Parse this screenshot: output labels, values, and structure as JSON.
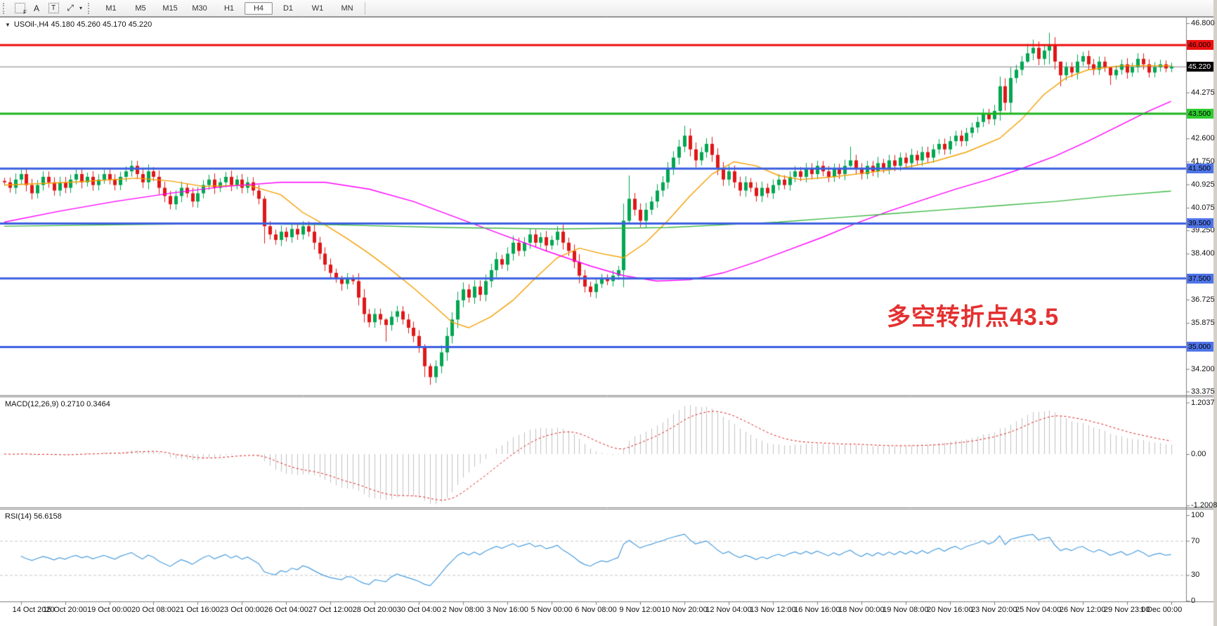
{
  "toolbar": {
    "icons": [
      {
        "name": "object-list-icon",
        "glyph": "F"
      },
      {
        "name": "text-label-icon",
        "glyph": "A"
      },
      {
        "name": "text-box-icon",
        "glyph": "T"
      },
      {
        "name": "cursor-mode-icon",
        "glyph": "⤢"
      }
    ],
    "dropdown_caret": "▾",
    "timeframes": [
      "M1",
      "M5",
      "M15",
      "M30",
      "H1",
      "H4",
      "D1",
      "W1",
      "MN"
    ],
    "active_timeframe": "H4"
  },
  "chart": {
    "title_text": "USOil-,H4  45.180 45.260 45.170 45.220",
    "annotation": {
      "text": "多空转折点43.5",
      "color": "#e43030"
    }
  },
  "indicators": {
    "macd": {
      "label_full": "MACD(12,26,9) 0.2710 0.3464",
      "params": "12,26,9",
      "main_value": "0.2710",
      "signal_value": "0.3464",
      "axis_labels": [
        {
          "text": "1.2037",
          "value": 1.2037
        },
        {
          "text": "0.00",
          "value": 0
        },
        {
          "text": "-1.2008",
          "value": -1.2008
        }
      ]
    },
    "rsi": {
      "label_full": "RSI(14) 56.6158",
      "period": "14",
      "value": "56.6158",
      "axis_labels": [
        {
          "text": "100",
          "value": 100
        },
        {
          "text": "70",
          "value": 70
        },
        {
          "text": "30",
          "value": 30
        },
        {
          "text": "0",
          "value": 0
        }
      ],
      "dashed_levels": [
        70,
        30
      ]
    }
  },
  "price_axis": {
    "ticks": [
      {
        "text": "46.800",
        "price": 46.8
      },
      {
        "text": "44.275",
        "price": 44.275
      },
      {
        "text": "42.600",
        "price": 42.6
      },
      {
        "text": "41.750",
        "price": 41.75
      },
      {
        "text": "40.925",
        "price": 40.925
      },
      {
        "text": "40.075",
        "price": 40.075
      },
      {
        "text": "39.250",
        "price": 39.25
      },
      {
        "text": "38.400",
        "price": 38.4
      },
      {
        "text": "36.725",
        "price": 36.725
      },
      {
        "text": "35.875",
        "price": 35.875
      },
      {
        "text": "34.200",
        "price": 34.2
      },
      {
        "text": "33.375",
        "price": 33.375
      }
    ],
    "badges": [
      {
        "text": "46.000",
        "price": 46.0,
        "bg": "#ee1111",
        "fg": "#000000"
      },
      {
        "text": "45.220",
        "price": 45.22,
        "bg": "#000000",
        "fg": "#ffffff"
      },
      {
        "text": "43.500",
        "price": 43.5,
        "bg": "#2fcc2f",
        "fg": "#000000"
      },
      {
        "text": "41.500",
        "price": 41.5,
        "bg": "#4f74e8",
        "fg": "#000000"
      },
      {
        "text": "39.500",
        "price": 39.5,
        "bg": "#4f74e8",
        "fg": "#000000"
      },
      {
        "text": "37.500",
        "price": 37.5,
        "bg": "#4f74e8",
        "fg": "#000000"
      },
      {
        "text": "35.000",
        "price": 35.0,
        "bg": "#4f74e8",
        "fg": "#000000"
      }
    ]
  },
  "time_axis": {
    "labels": [
      "14 Oct 2020",
      "15 Oct 20:00",
      "19 Oct 00:00",
      "20 Oct 08:00",
      "21 Oct 16:00",
      "23 Oct 00:00",
      "26 Oct 04:00",
      "27 Oct 12:00",
      "28 Oct 20:00",
      "30 Oct 04:00",
      "2 Nov 08:00",
      "3 Nov 16:00",
      "5 Nov 00:00",
      "6 Nov 08:00",
      "9 Nov 12:00",
      "10 Nov 20:00",
      "12 Nov 04:00",
      "13 Nov 12:00",
      "16 Nov 16:00",
      "18 Nov 00:00",
      "19 Nov 08:00",
      "20 Nov 16:00",
      "23 Nov 20:00",
      "25 Nov 04:00",
      "26 Nov 12:00",
      "29 Nov 23:00",
      "1 Dec 00:00"
    ]
  },
  "chart_data": {
    "type": "candlestick",
    "symbol": "USOil-",
    "timeframe": "H4",
    "current_bar": {
      "open": 45.18,
      "high": 45.26,
      "low": 45.17,
      "close": 45.22
    },
    "price_range": [
      33.375,
      46.8
    ],
    "open_rule": "previous_close",
    "closes": [
      41.0,
      40.8,
      41.1,
      41.3,
      40.9,
      40.6,
      40.9,
      41.2,
      41.0,
      40.7,
      41.0,
      40.8,
      41.1,
      41.3,
      41.0,
      41.2,
      40.9,
      41.1,
      41.3,
      41.1,
      40.9,
      41.2,
      41.4,
      41.6,
      41.3,
      41.0,
      41.4,
      41.2,
      40.8,
      40.5,
      40.2,
      40.5,
      40.8,
      40.6,
      40.3,
      40.6,
      40.9,
      41.1,
      40.8,
      41.0,
      41.2,
      40.9,
      41.1,
      40.8,
      41.0,
      40.7,
      40.4,
      39.4,
      39.1,
      38.9,
      39.2,
      39.0,
      39.3,
      39.1,
      39.4,
      39.2,
      38.8,
      38.4,
      38.0,
      37.7,
      37.5,
      37.3,
      37.5,
      37.4,
      36.8,
      36.2,
      35.9,
      36.2,
      36.0,
      35.8,
      36.1,
      36.3,
      36.0,
      35.7,
      35.4,
      35.0,
      34.3,
      33.9,
      34.3,
      34.8,
      35.4,
      36.0,
      36.7,
      37.1,
      36.8,
      37.2,
      36.9,
      37.4,
      37.8,
      38.2,
      38.0,
      38.4,
      38.8,
      38.5,
      38.8,
      39.1,
      38.8,
      39.0,
      38.7,
      38.9,
      39.2,
      38.8,
      38.5,
      38.1,
      37.6,
      37.2,
      37.0,
      37.3,
      37.5,
      37.4,
      37.6,
      37.8,
      39.6,
      40.4,
      40.0,
      39.6,
      40.0,
      40.3,
      40.7,
      41.0,
      41.5,
      41.9,
      42.3,
      42.7,
      42.2,
      41.8,
      42.1,
      42.4,
      42.0,
      41.5,
      41.1,
      41.4,
      41.0,
      40.7,
      41.0,
      40.8,
      40.5,
      40.8,
      40.6,
      40.9,
      41.1,
      40.9,
      41.2,
      41.4,
      41.2,
      41.5,
      41.3,
      41.6,
      41.4,
      41.2,
      41.5,
      41.3,
      41.6,
      41.8,
      41.5,
      41.3,
      41.6,
      41.4,
      41.7,
      41.5,
      41.8,
      41.6,
      41.9,
      41.7,
      42.0,
      41.8,
      42.1,
      41.9,
      42.2,
      42.4,
      42.2,
      42.5,
      42.7,
      42.5,
      42.8,
      43.0,
      43.2,
      43.5,
      43.3,
      43.6,
      44.5,
      43.9,
      44.8,
      45.1,
      45.4,
      45.7,
      45.9,
      45.5,
      45.8,
      46.0,
      45.4,
      44.9,
      45.2,
      45.0,
      45.4,
      45.6,
      45.3,
      45.1,
      45.4,
      45.2,
      44.9,
      45.1,
      45.3,
      45.0,
      45.2,
      45.5,
      45.3,
      45.0,
      45.2,
      45.3,
      45.15,
      45.22
    ],
    "wick_overrides": {
      "47": [
        40.5,
        38.77
      ],
      "61": [
        37.6,
        37.05
      ],
      "69": [
        36.05,
        35.2
      ],
      "76": [
        35.1,
        33.9
      ],
      "77": [
        34.4,
        33.62
      ],
      "113": [
        41.25,
        39.5
      ],
      "123": [
        43.06,
        42.1
      ],
      "153": [
        42.3,
        41.55
      ],
      "185": [
        46.05,
        45.35
      ],
      "186": [
        46.2,
        45.45
      ],
      "189": [
        46.45,
        45.3
      ],
      "191": [
        45.35,
        44.5
      ],
      "200": [
        45.15,
        44.55
      ]
    },
    "colors": {
      "up": "#00a651",
      "down": "#e01717",
      "bid_line": "#808080",
      "ma_fast": "#f5a000",
      "ma_mid": "#ff00ff",
      "ma_slow": "#3cb843",
      "macd_hist": "#c2c2c2",
      "macd_signal": "#e02020",
      "rsi_line": "#4a9ede"
    },
    "levels": [
      {
        "price": 46.0,
        "color": "#ee1111",
        "width": 3
      },
      {
        "price": 45.22,
        "color": "#808080",
        "width": 1
      },
      {
        "price": 43.5,
        "color": "#1db31d",
        "width": 3
      },
      {
        "price": 41.5,
        "color": "#3c60e0",
        "width": 3
      },
      {
        "price": 39.5,
        "color": "#3c60e0",
        "width": 3
      },
      {
        "price": 37.5,
        "color": "#3c60e0",
        "width": 3
      },
      {
        "price": 35.0,
        "color": "#3c60e0",
        "width": 3
      }
    ],
    "moving_averages": [
      {
        "name": "ma-fast",
        "color": "#f5a000",
        "points": [
          [
            0,
            40.9
          ],
          [
            12,
            41.0
          ],
          [
            24,
            41.15
          ],
          [
            30,
            41.05
          ],
          [
            36,
            40.85
          ],
          [
            44,
            40.9
          ],
          [
            50,
            40.55
          ],
          [
            54,
            39.9
          ],
          [
            58,
            39.45
          ],
          [
            62,
            38.95
          ],
          [
            66,
            38.4
          ],
          [
            70,
            37.8
          ],
          [
            74,
            37.15
          ],
          [
            78,
            36.45
          ],
          [
            81,
            35.9
          ],
          [
            84,
            35.7
          ],
          [
            88,
            36.1
          ],
          [
            92,
            36.7
          ],
          [
            96,
            37.5
          ],
          [
            100,
            38.25
          ],
          [
            104,
            38.6
          ],
          [
            108,
            38.4
          ],
          [
            112,
            38.25
          ],
          [
            116,
            38.8
          ],
          [
            120,
            39.6
          ],
          [
            124,
            40.5
          ],
          [
            128,
            41.3
          ],
          [
            132,
            41.75
          ],
          [
            136,
            41.6
          ],
          [
            140,
            41.25
          ],
          [
            144,
            41.1
          ],
          [
            150,
            41.2
          ],
          [
            156,
            41.35
          ],
          [
            162,
            41.5
          ],
          [
            168,
            41.75
          ],
          [
            174,
            42.1
          ],
          [
            180,
            42.6
          ],
          [
            184,
            43.3
          ],
          [
            188,
            44.2
          ],
          [
            192,
            44.8
          ],
          [
            196,
            45.1
          ],
          [
            202,
            45.25
          ],
          [
            211,
            45.25
          ]
        ]
      },
      {
        "name": "ma-mid",
        "color": "#ff00ff",
        "points": [
          [
            0,
            39.55
          ],
          [
            10,
            39.95
          ],
          [
            20,
            40.3
          ],
          [
            30,
            40.6
          ],
          [
            40,
            40.85
          ],
          [
            50,
            41.0
          ],
          [
            58,
            41.0
          ],
          [
            66,
            40.75
          ],
          [
            74,
            40.3
          ],
          [
            82,
            39.7
          ],
          [
            90,
            39.1
          ],
          [
            98,
            38.5
          ],
          [
            106,
            37.95
          ],
          [
            112,
            37.6
          ],
          [
            118,
            37.4
          ],
          [
            124,
            37.45
          ],
          [
            130,
            37.7
          ],
          [
            136,
            38.1
          ],
          [
            142,
            38.55
          ],
          [
            148,
            39.0
          ],
          [
            154,
            39.5
          ],
          [
            160,
            39.95
          ],
          [
            166,
            40.35
          ],
          [
            172,
            40.75
          ],
          [
            178,
            41.1
          ],
          [
            184,
            41.5
          ],
          [
            190,
            41.95
          ],
          [
            196,
            42.5
          ],
          [
            202,
            43.1
          ],
          [
            207,
            43.6
          ],
          [
            211,
            43.95
          ]
        ]
      },
      {
        "name": "ma-slow",
        "color": "#3cb843",
        "points": [
          [
            0,
            39.4
          ],
          [
            20,
            39.45
          ],
          [
            40,
            39.5
          ],
          [
            60,
            39.45
          ],
          [
            80,
            39.35
          ],
          [
            100,
            39.3
          ],
          [
            120,
            39.35
          ],
          [
            130,
            39.45
          ],
          [
            140,
            39.55
          ],
          [
            150,
            39.7
          ],
          [
            160,
            39.85
          ],
          [
            170,
            40.0
          ],
          [
            180,
            40.15
          ],
          [
            190,
            40.3
          ],
          [
            200,
            40.5
          ],
          [
            211,
            40.68
          ]
        ]
      }
    ],
    "macd_panel": {
      "params": [
        12,
        26,
        9
      ],
      "range": [
        -1.2008,
        1.2037
      ],
      "current_main": 0.271,
      "current_signal": 0.3464
    },
    "rsi_panel": {
      "period": 14,
      "range": [
        0,
        100
      ],
      "levels": [
        70,
        30
      ],
      "current": 56.6158
    }
  }
}
